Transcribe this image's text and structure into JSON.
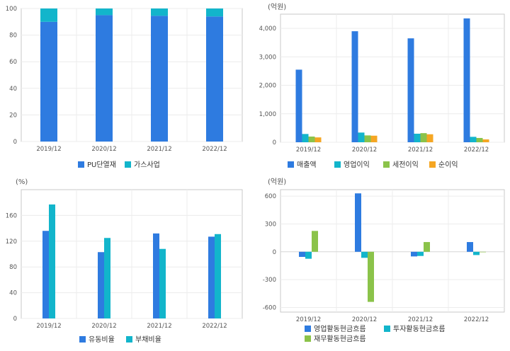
{
  "chart_data": [
    {
      "type": "bar",
      "stacked": true,
      "unit_label": "",
      "categories": [
        "2019/12",
        "2020/12",
        "2021/12",
        "2022/12"
      ],
      "ylim": [
        0,
        100
      ],
      "yticks": [
        "0",
        "20",
        "40",
        "60",
        "80",
        "100"
      ],
      "ytick_values": [
        0,
        20,
        40,
        60,
        80,
        100
      ],
      "series": [
        {
          "name": "PU단열재",
          "color": "#2E7BE0",
          "values": [
            90,
            95,
            94.5,
            94
          ]
        },
        {
          "name": "가스사업",
          "color": "#12B5CB",
          "values": [
            10,
            5,
            5.5,
            6
          ]
        }
      ],
      "grid": true,
      "legend": "bottom"
    },
    {
      "type": "bar",
      "unit_label": "(억원)",
      "categories": [
        "2019/12",
        "2020/12",
        "2021/12",
        "2022/12"
      ],
      "ylim": [
        0,
        4500
      ],
      "yticks": [
        "0",
        "1,000",
        "2,000",
        "3,000",
        "4,000"
      ],
      "ytick_values": [
        0,
        1000,
        2000,
        3000,
        4000
      ],
      "series": [
        {
          "name": "매출액",
          "color": "#2E7BE0",
          "values": [
            2550,
            3900,
            3650,
            4350
          ]
        },
        {
          "name": "영업이익",
          "color": "#12B5CB",
          "values": [
            290,
            340,
            300,
            190
          ]
        },
        {
          "name": "세전이익",
          "color": "#8BC34A",
          "values": [
            200,
            240,
            320,
            150
          ]
        },
        {
          "name": "순이익",
          "color": "#F5A623",
          "values": [
            170,
            230,
            280,
            100
          ]
        }
      ],
      "grid": true,
      "legend": "bottom"
    },
    {
      "type": "bar",
      "unit_label": "(%)",
      "categories": [
        "2019/12",
        "2020/12",
        "2021/12",
        "2022/12"
      ],
      "ylim": [
        0,
        200
      ],
      "yticks": [
        "0",
        "40",
        "80",
        "120",
        "160"
      ],
      "ytick_values": [
        0,
        40,
        80,
        120,
        160
      ],
      "series": [
        {
          "name": "유동비율",
          "color": "#2E7BE0",
          "values": [
            136,
            103,
            132,
            127
          ]
        },
        {
          "name": "부채비율",
          "color": "#12B5CB",
          "values": [
            177,
            125,
            108,
            131
          ]
        }
      ],
      "grid": true,
      "legend": "bottom"
    },
    {
      "type": "bar",
      "unit_label": "(억원)",
      "categories": [
        "2019/12",
        "2020/12",
        "2021/12",
        "2022/12"
      ],
      "ylim": [
        -650,
        670
      ],
      "yticks": [
        "-600",
        "-300",
        "0",
        "300",
        "600"
      ],
      "ytick_values": [
        -600,
        -300,
        0,
        300,
        600
      ],
      "series": [
        {
          "name": "영업활동현금흐름",
          "color": "#2E7BE0",
          "values": [
            -55,
            630,
            -50,
            105
          ]
        },
        {
          "name": "투자활동현금흐름",
          "color": "#12B5CB",
          "values": [
            -75,
            -65,
            -45,
            -35
          ]
        },
        {
          "name": "재무활동현금흐름",
          "color": "#8BC34A",
          "values": [
            225,
            -540,
            105,
            -5
          ]
        }
      ],
      "grid": true,
      "legend": "bottom"
    }
  ]
}
